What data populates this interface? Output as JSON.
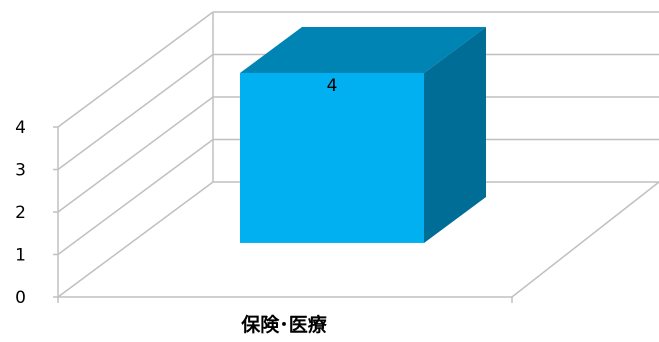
{
  "chart_data": {
    "type": "bar",
    "style": "3d-column",
    "categories": [
      "保険･医療"
    ],
    "values": [
      4
    ],
    "data_labels": [
      "4"
    ],
    "y_ticks": [
      "0",
      "1",
      "2",
      "3",
      "4"
    ],
    "ylim": [
      0,
      4
    ],
    "grid": true,
    "legend": "none",
    "colors": {
      "front": "#00b0f0",
      "top": "#0084b4",
      "side": "#006d96",
      "grid": "#c0c0c0"
    }
  }
}
